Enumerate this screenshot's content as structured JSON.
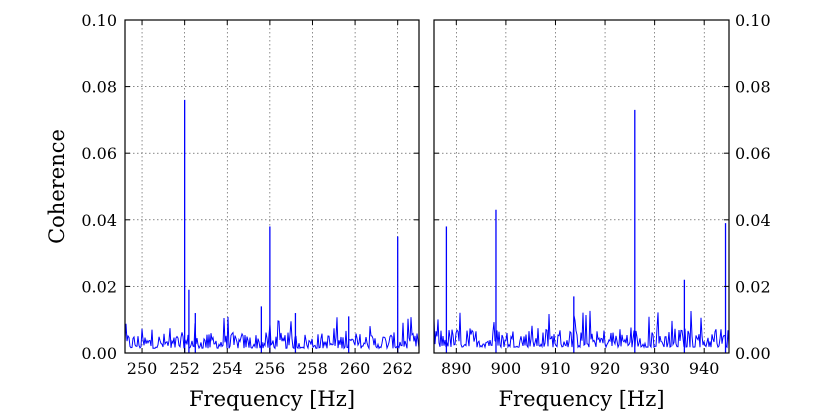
{
  "chart_data": [
    {
      "type": "line",
      "panel": "left",
      "xlabel": "Frequency [Hz]",
      "ylabel": "Coherence",
      "xlim": [
        249.2,
        263.0
      ],
      "ylim": [
        0.0,
        0.1
      ],
      "xticks": [
        250,
        252,
        254,
        256,
        258,
        260,
        262
      ],
      "yticks": [
        0.0,
        0.02,
        0.04,
        0.06,
        0.08,
        0.1
      ],
      "ytick_labels": [
        "0.00",
        "0.02",
        "0.04",
        "0.06",
        "0.08",
        "0.10"
      ],
      "yaxis_side": "left",
      "grid": true,
      "noise_floor": {
        "typical": 0.004,
        "max": 0.011
      },
      "peaks": [
        {
          "x": 252.0,
          "y": 0.076
        },
        {
          "x": 252.2,
          "y": 0.019
        },
        {
          "x": 252.5,
          "y": 0.012
        },
        {
          "x": 255.6,
          "y": 0.014
        },
        {
          "x": 256.0,
          "y": 0.038
        },
        {
          "x": 257.2,
          "y": 0.012
        },
        {
          "x": 259.7,
          "y": 0.011
        },
        {
          "x": 262.0,
          "y": 0.035
        }
      ]
    },
    {
      "type": "line",
      "panel": "right",
      "xlabel": "Frequency [Hz]",
      "ylabel": "",
      "xlim": [
        885.5,
        945.0
      ],
      "ylim": [
        0.0,
        0.1
      ],
      "xticks": [
        890,
        900,
        910,
        920,
        930,
        940
      ],
      "yticks": [
        0.0,
        0.02,
        0.04,
        0.06,
        0.08,
        0.1
      ],
      "ytick_labels": [
        "0.00",
        "0.02",
        "0.04",
        "0.06",
        "0.08",
        "0.10"
      ],
      "yaxis_side": "right",
      "grid": true,
      "noise_floor": {
        "typical": 0.005,
        "max": 0.013
      },
      "peaks": [
        {
          "x": 888.0,
          "y": 0.038
        },
        {
          "x": 898.0,
          "y": 0.043
        },
        {
          "x": 913.7,
          "y": 0.017
        },
        {
          "x": 926.0,
          "y": 0.073
        },
        {
          "x": 936.0,
          "y": 0.022
        },
        {
          "x": 944.3,
          "y": 0.039
        }
      ]
    }
  ]
}
